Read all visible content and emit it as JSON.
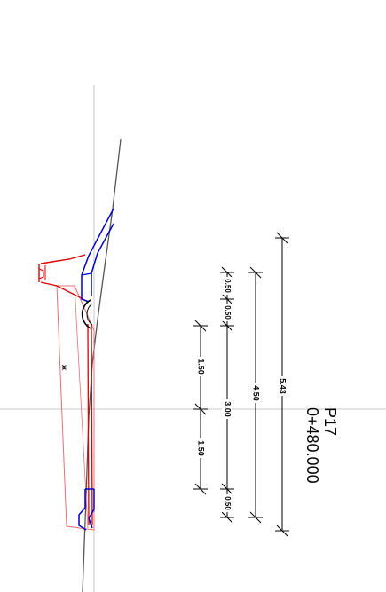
{
  "section": {
    "profile_id": "P17",
    "chainage": "0+480.000",
    "marker": "ж"
  },
  "dimensions": [
    {
      "id": "dim-5-43",
      "value": "5.43"
    },
    {
      "id": "dim-4-50",
      "value": "4.50"
    },
    {
      "id": "dim-0-50-top-a",
      "value": "0.50"
    },
    {
      "id": "dim-0-50-top-b",
      "value": "0.50"
    },
    {
      "id": "dim-3-00",
      "value": "3.00"
    },
    {
      "id": "dim-0-50-bottom",
      "value": "0.50"
    },
    {
      "id": "dim-1-50-top",
      "value": "1.50"
    },
    {
      "id": "dim-1-50-bottom",
      "value": "1.50"
    }
  ],
  "colors": {
    "axis": "#c8c8c8",
    "terrain": "#555555",
    "red_structure": "#e00000",
    "pink_structure": "#e87070",
    "blue_structure": "#0000cc",
    "dimension": "#000000"
  }
}
